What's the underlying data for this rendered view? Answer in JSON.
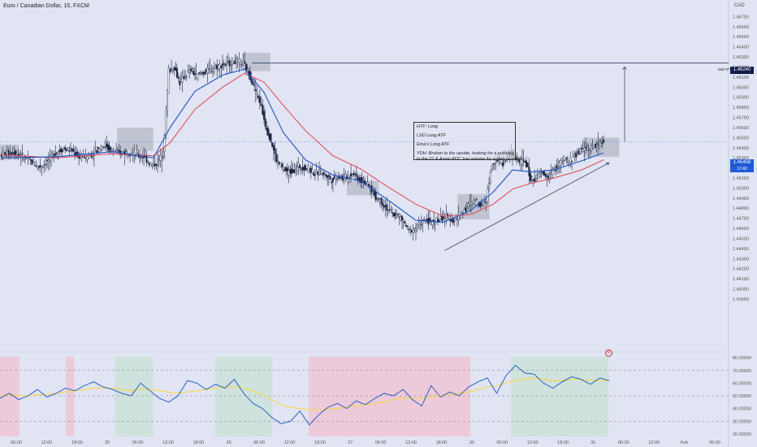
{
  "title": "Euro / Canadian Dollar, 15, FXCM",
  "currency": "CAD",
  "target_label": "Mid TP",
  "target_price": "1.46240",
  "current_price": "1.45458",
  "countdown": "12:40",
  "note": {
    "line1": "HTF: Long",
    "line2": "LSD Long ATF",
    "line3": "Ema's Long ATF",
    "line4": "YDH: Broken to the upside, looking for a pullback",
    "line5": "to the 21 & Asian POC low volume for a long position."
  },
  "alert_icon_label": "©",
  "colors": {
    "ema_fast": "#1a52c4",
    "ema_slow": "#e04450",
    "oscillator": "#1a52c4",
    "signal": "#f5d84e",
    "zone_red": "#f0c2d0",
    "zone_green": "#c8e2d6",
    "box": "#a6a9b4"
  },
  "chart_data": [
    {
      "type": "candlestick",
      "title": "Euro / Canadian Dollar, 15, FXCM",
      "y_axis_label": "CAD",
      "ylim": [
        1.434,
        1.468
      ],
      "y_ticks": [
        "1.46700",
        "1.46600",
        "1.46500",
        "1.46400",
        "1.46300",
        "1.46200",
        "1.46100",
        "1.46000",
        "1.45900",
        "1.45800",
        "1.45700",
        "1.45600",
        "1.45500",
        "1.45400",
        "1.45300",
        "1.45200",
        "1.45100",
        "1.45000",
        "1.44900",
        "1.44800",
        "1.44700",
        "1.44600",
        "1.44500",
        "1.44400",
        "1.44300",
        "1.44200",
        "1.44100",
        "1.44000",
        "1.43900"
      ],
      "x_ticks": [
        "06:00",
        "12:00",
        "18:00",
        "25",
        "06:00",
        "12:00",
        "18:00",
        "26",
        "06:00",
        "12:00",
        "18:00",
        "27",
        "06:00",
        "12:00",
        "18:00",
        "30",
        "06:00",
        "12:00",
        "18:00",
        "31",
        "06:00",
        "12:00",
        "Feb",
        "06:00"
      ],
      "price_path": [
        [
          0,
          1.4533
        ],
        [
          5,
          1.4536
        ],
        [
          10,
          1.4528
        ],
        [
          14,
          1.4521
        ],
        [
          16,
          1.4524
        ],
        [
          18,
          1.4529
        ],
        [
          20,
          1.4535
        ],
        [
          23,
          1.4539
        ],
        [
          26,
          1.4537
        ],
        [
          28,
          1.4532
        ],
        [
          31,
          1.4531
        ],
        [
          33,
          1.4533
        ],
        [
          36,
          1.454
        ],
        [
          38,
          1.4543
        ],
        [
          40,
          1.4537
        ],
        [
          43,
          1.4535
        ],
        [
          46,
          1.4536
        ],
        [
          49,
          1.4533
        ],
        [
          52,
          1.4531
        ],
        [
          55,
          1.4522
        ],
        [
          57,
          1.4526
        ],
        [
          59,
          1.4534
        ],
        [
          61,
          1.4617
        ],
        [
          63,
          1.462
        ],
        [
          65,
          1.4604
        ],
        [
          67,
          1.4612
        ],
        [
          69,
          1.4617
        ],
        [
          71,
          1.4611
        ],
        [
          73,
          1.4614
        ],
        [
          76,
          1.4617
        ],
        [
          79,
          1.4621
        ],
        [
          82,
          1.4623
        ],
        [
          85,
          1.4626
        ],
        [
          88,
          1.4624
        ],
        [
          90,
          1.4614
        ],
        [
          92,
          1.46
        ],
        [
          94,
          1.4586
        ],
        [
          96,
          1.4563
        ],
        [
          98,
          1.4547
        ],
        [
          100,
          1.4528
        ],
        [
          102,
          1.452
        ],
        [
          104,
          1.4516
        ],
        [
          106,
          1.4517
        ],
        [
          108,
          1.4522
        ],
        [
          110,
          1.452
        ],
        [
          112,
          1.4519
        ],
        [
          114,
          1.4514
        ],
        [
          116,
          1.4516
        ],
        [
          118,
          1.4513
        ],
        [
          120,
          1.4508
        ],
        [
          122,
          1.4512
        ],
        [
          124,
          1.451
        ],
        [
          126,
          1.4512
        ],
        [
          128,
          1.4515
        ],
        [
          130,
          1.4508
        ],
        [
          132,
          1.4507
        ],
        [
          134,
          1.45
        ],
        [
          136,
          1.4491
        ],
        [
          138,
          1.4487
        ],
        [
          140,
          1.448
        ],
        [
          142,
          1.4474
        ],
        [
          144,
          1.4472
        ],
        [
          146,
          1.4467
        ],
        [
          148,
          1.4457
        ],
        [
          150,
          1.446
        ],
        [
          152,
          1.4465
        ],
        [
          154,
          1.4468
        ],
        [
          156,
          1.4466
        ],
        [
          158,
          1.4468
        ],
        [
          160,
          1.447
        ],
        [
          162,
          1.4472
        ],
        [
          164,
          1.4468
        ],
        [
          166,
          1.4472
        ],
        [
          168,
          1.4478
        ],
        [
          170,
          1.4484
        ],
        [
          172,
          1.4487
        ],
        [
          174,
          1.4484
        ],
        [
          176,
          1.4489
        ],
        [
          178,
          1.4525
        ],
        [
          180,
          1.4528
        ],
        [
          182,
          1.4524
        ],
        [
          184,
          1.4535
        ],
        [
          186,
          1.4532
        ],
        [
          188,
          1.4526
        ],
        [
          190,
          1.4527
        ],
        [
          192,
          1.4509
        ],
        [
          194,
          1.451
        ],
        [
          196,
          1.4515
        ],
        [
          198,
          1.451
        ],
        [
          200,
          1.4517
        ],
        [
          202,
          1.4522
        ],
        [
          204,
          1.4528
        ],
        [
          206,
          1.4526
        ],
        [
          208,
          1.4532
        ],
        [
          210,
          1.4537
        ],
        [
          212,
          1.4541
        ],
        [
          214,
          1.4539
        ],
        [
          216,
          1.4543
        ],
        [
          218,
          1.4546
        ]
      ],
      "ema_fast": [
        [
          0,
          1.453
        ],
        [
          20,
          1.4531
        ],
        [
          40,
          1.4536
        ],
        [
          55,
          1.453
        ],
        [
          61,
          1.456
        ],
        [
          70,
          1.4596
        ],
        [
          80,
          1.4612
        ],
        [
          88,
          1.4618
        ],
        [
          95,
          1.4595
        ],
        [
          102,
          1.4555
        ],
        [
          110,
          1.4528
        ],
        [
          120,
          1.4513
        ],
        [
          130,
          1.4507
        ],
        [
          140,
          1.4488
        ],
        [
          150,
          1.4468
        ],
        [
          160,
          1.4466
        ],
        [
          170,
          1.4478
        ],
        [
          178,
          1.4496
        ],
        [
          185,
          1.4518
        ],
        [
          192,
          1.4516
        ],
        [
          200,
          1.4518
        ],
        [
          210,
          1.4527
        ],
        [
          218,
          1.4535
        ]
      ],
      "ema_slow": [
        [
          0,
          1.4533
        ],
        [
          20,
          1.453
        ],
        [
          40,
          1.4534
        ],
        [
          55,
          1.4532
        ],
        [
          61,
          1.4545
        ],
        [
          70,
          1.4578
        ],
        [
          80,
          1.46
        ],
        [
          88,
          1.4614
        ],
        [
          95,
          1.4605
        ],
        [
          102,
          1.4582
        ],
        [
          110,
          1.4557
        ],
        [
          120,
          1.4532
        ],
        [
          130,
          1.4519
        ],
        [
          140,
          1.4501
        ],
        [
          150,
          1.4484
        ],
        [
          160,
          1.4472
        ],
        [
          170,
          1.4474
        ],
        [
          178,
          1.4484
        ],
        [
          185,
          1.4499
        ],
        [
          192,
          1.4505
        ],
        [
          200,
          1.451
        ],
        [
          210,
          1.4518
        ],
        [
          218,
          1.4528
        ]
      ],
      "trend_line": {
        "from": [
          136,
          1.4438
        ],
        "to": [
          218,
          1.4525
        ]
      },
      "target_arrow": {
        "x": 191,
        "from": 1.4546,
        "to": 1.462
      }
    },
    {
      "type": "line",
      "title": "Oscillator",
      "ylim": [
        18,
        82
      ],
      "y_ticks": [
        "80.00000",
        "70.00000",
        "60.00000",
        "50.00000",
        "40.00000",
        "30.00000",
        "20.00000"
      ],
      "levels": [
        70,
        50,
        30
      ],
      "series": [
        {
          "name": "",
          "values": [
            48,
            52,
            47,
            50,
            55,
            49,
            52,
            56,
            54,
            58,
            61,
            57,
            55,
            52,
            50,
            60,
            54,
            48,
            45,
            50,
            62,
            60,
            55,
            59,
            56,
            63,
            52,
            44,
            40,
            33,
            28,
            30,
            38,
            27,
            35,
            41,
            44,
            40,
            46,
            43,
            48,
            52,
            50,
            55,
            47,
            42,
            58,
            49,
            53,
            50,
            57,
            61,
            64,
            52,
            66,
            74,
            68,
            67,
            60,
            56,
            61,
            65,
            63,
            59,
            64,
            62
          ]
        },
        {
          "name": "",
          "values": [
            50,
            51,
            50,
            50,
            51,
            51,
            52,
            53,
            54,
            55,
            56,
            56,
            56,
            55,
            54,
            55,
            55,
            54,
            53,
            52,
            53,
            54,
            55,
            56,
            57,
            57,
            56,
            54,
            51,
            47,
            43,
            41,
            40,
            39,
            39,
            39,
            40,
            41,
            42,
            43,
            44,
            45,
            47,
            48,
            48,
            48,
            49,
            50,
            51,
            52,
            53,
            55,
            57,
            58,
            60,
            62,
            63,
            64,
            63,
            62,
            62,
            63,
            63,
            62,
            62,
            62
          ]
        }
      ]
    }
  ]
}
